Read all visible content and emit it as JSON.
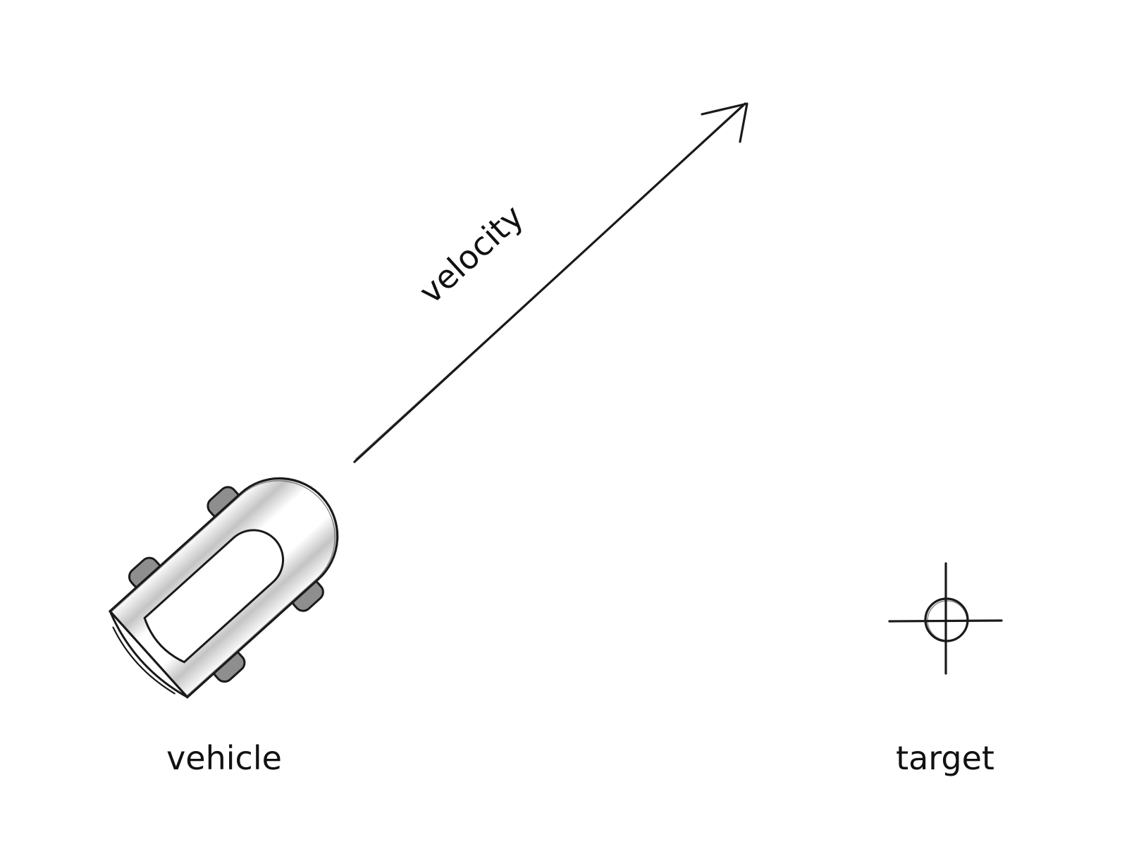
{
  "diagram": {
    "velocity_label": "velocity",
    "vehicle_label": "vehicle",
    "target_label": "target"
  },
  "icons": {
    "vehicle": "car-top-view-icon",
    "target": "crosshair-icon",
    "velocity": "arrow-icon"
  },
  "colors": {
    "background": "#ffffff",
    "ink": "#1a1a1a",
    "tire": "#8e8e8e",
    "body_shade": "#c4c4c4"
  }
}
